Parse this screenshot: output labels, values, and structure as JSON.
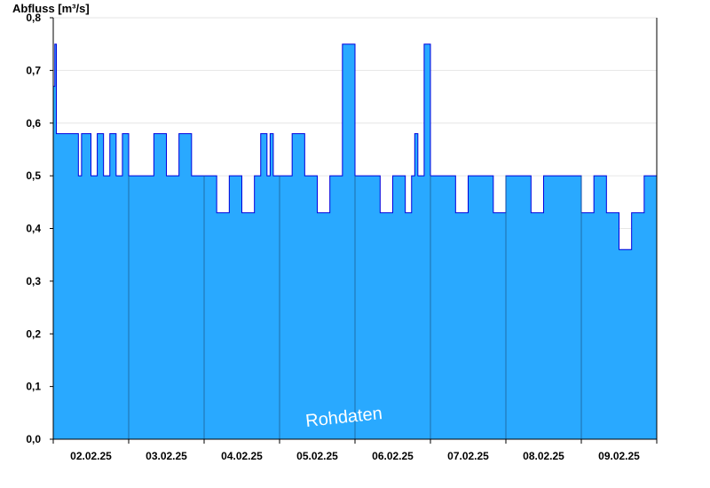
{
  "chart_data": {
    "type": "area",
    "ylabel": "Abfluss [m³/s]",
    "ylim": [
      0,
      0.8
    ],
    "yticks": [
      "0,0",
      "0,1",
      "0,2",
      "0,3",
      "0,4",
      "0,5",
      "0,6",
      "0,7",
      "0,8"
    ],
    "xlim": [
      "01.02.25 00:00",
      "09.02.25 00:00"
    ],
    "xticks": [
      "02.02.25",
      "03.02.25",
      "04.02.25",
      "05.02.25",
      "06.02.25",
      "07.02.25",
      "08.02.25",
      "09.02.25"
    ],
    "series": [
      {
        "x": [
          "01.02.25 00:00",
          "01.02.25 00:30",
          "01.02.25 01:00",
          "01.02.25 02:00",
          "01.02.25 04:00",
          "01.02.25 06:00",
          "01.02.25 08:00",
          "01.02.25 09:00",
          "01.02.25 10:00",
          "01.02.25 12:00",
          "01.02.25 14:00",
          "01.02.25 16:00",
          "01.02.25 18:00",
          "01.02.25 20:00",
          "01.02.25 22:00",
          "02.02.25 00:00",
          "02.02.25 04:00",
          "02.02.25 08:00",
          "02.02.25 12:00",
          "02.02.25 16:00",
          "02.02.25 20:00",
          "03.02.25 00:00",
          "03.02.25 04:00",
          "03.02.25 08:00",
          "03.02.25 12:00",
          "03.02.25 16:00",
          "03.02.25 18:00",
          "03.02.25 20:00",
          "03.02.25 21:00",
          "03.02.25 22:00",
          "03.02.25 23:00",
          "04.02.25 00:00",
          "04.02.25 04:00",
          "04.02.25 08:00",
          "04.02.25 12:00",
          "04.02.25 16:00",
          "04.02.25 20:00",
          "05.02.25 00:00",
          "05.02.25 04:00",
          "05.02.25 08:00",
          "05.02.25 12:00",
          "05.02.25 16:00",
          "05.02.25 18:00",
          "05.02.25 19:00",
          "05.02.25 20:00",
          "05.02.25 22:00",
          "06.02.25 00:00",
          "06.02.25 04:00",
          "06.02.25 08:00",
          "06.02.25 12:00",
          "06.02.25 16:00",
          "06.02.25 20:00",
          "07.02.25 00:00",
          "07.02.25 04:00",
          "07.02.25 08:00",
          "07.02.25 12:00",
          "07.02.25 16:00",
          "07.02.25 20:00",
          "08.02.25 00:00",
          "08.02.25 04:00",
          "08.02.25 08:00",
          "08.02.25 12:00",
          "08.02.25 16:00",
          "08.02.25 20:00",
          "09.02.25 00:00"
        ],
        "values": [
          0.67,
          0.75,
          0.58,
          0.58,
          0.58,
          0.58,
          0.5,
          0.58,
          0.58,
          0.5,
          0.58,
          0.5,
          0.58,
          0.5,
          0.58,
          0.5,
          0.5,
          0.58,
          0.5,
          0.58,
          0.5,
          0.5,
          0.43,
          0.5,
          0.43,
          0.5,
          0.58,
          0.5,
          0.58,
          0.5,
          0.5,
          0.5,
          0.58,
          0.5,
          0.43,
          0.5,
          0.75,
          0.5,
          0.5,
          0.43,
          0.5,
          0.43,
          0.5,
          0.58,
          0.5,
          0.75,
          0.5,
          0.5,
          0.43,
          0.5,
          0.5,
          0.43,
          0.5,
          0.5,
          0.43,
          0.5,
          0.5,
          0.5,
          0.43,
          0.5,
          0.43,
          0.36,
          0.43,
          0.5,
          0.43
        ]
      }
    ],
    "grid": true,
    "watermark": "Rohdaten",
    "colors": {
      "fill": "#29a9ff",
      "line": "#0000dd",
      "axis": "#000000",
      "grid": "#e6e6e6",
      "daydivider": "#1f5f93"
    }
  }
}
